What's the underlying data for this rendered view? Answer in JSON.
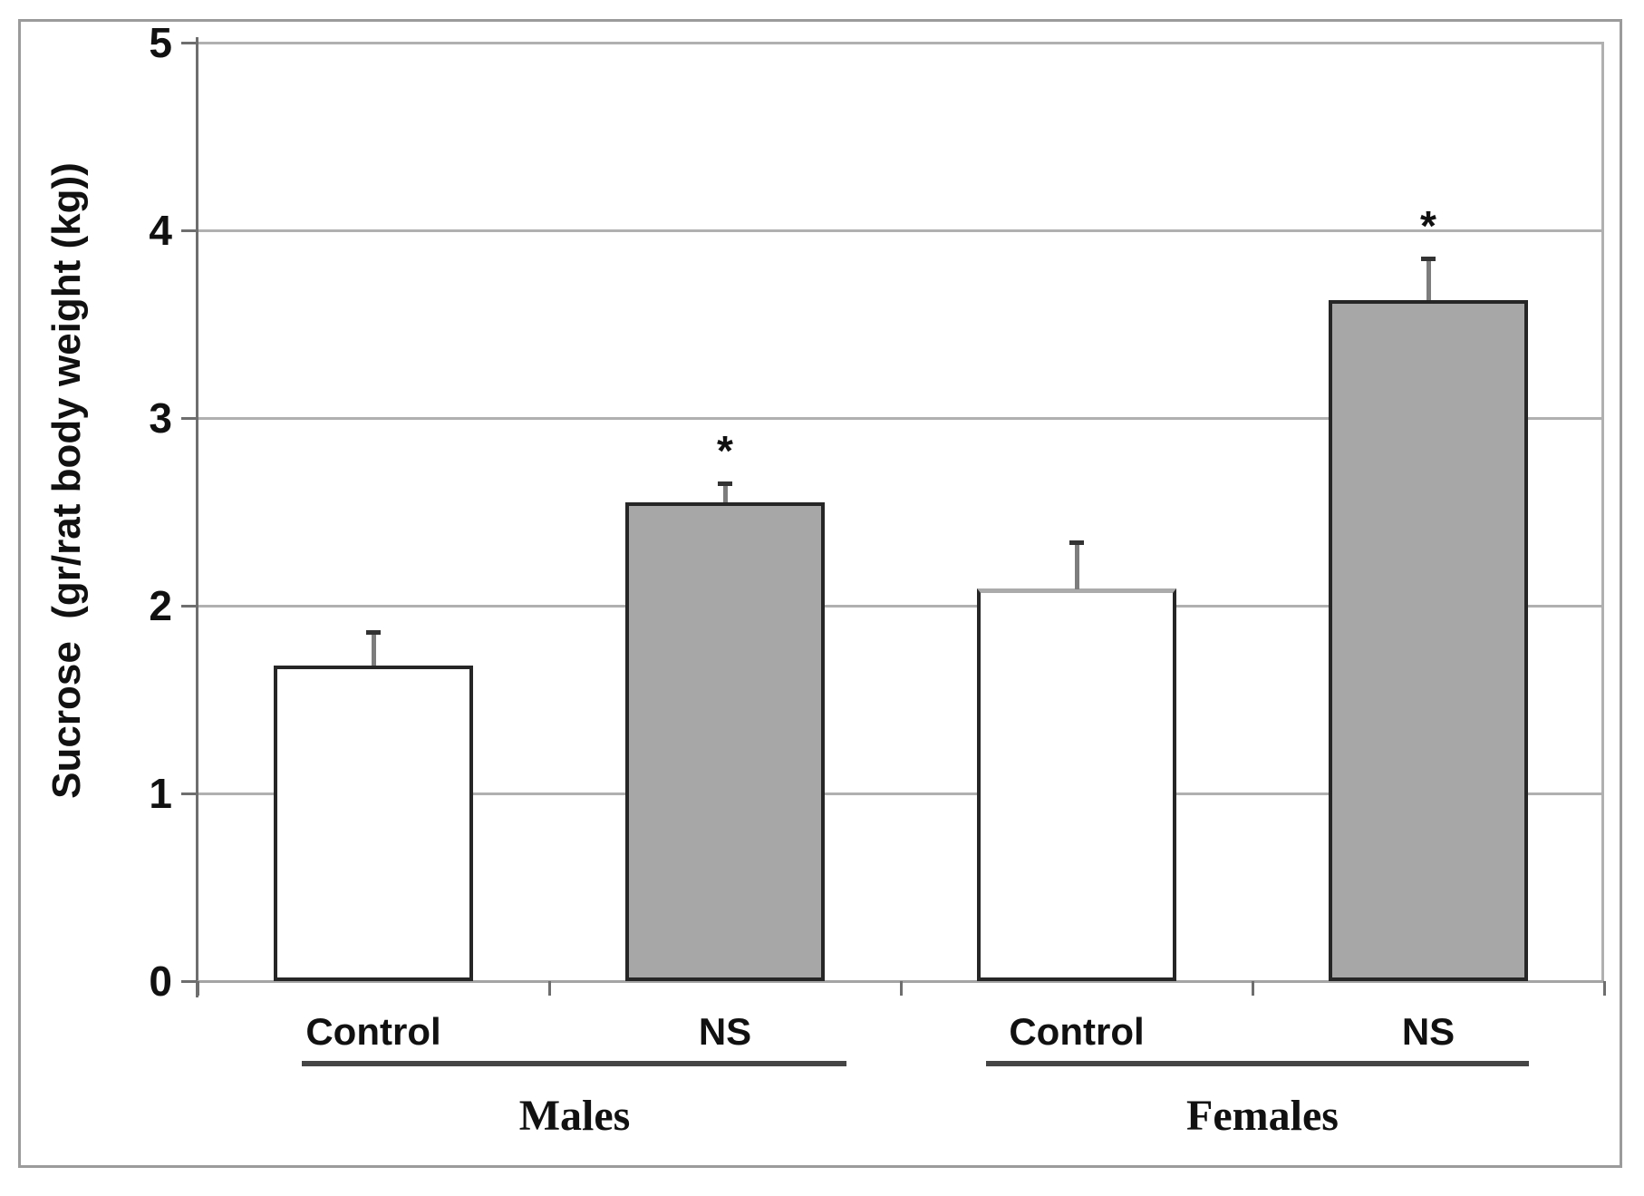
{
  "figure": {
    "y_axis": {
      "title_display": "Sucrose  (gr/rat body weight (kg))",
      "tick_labels": [
        "0",
        "1",
        "2",
        "3",
        "4",
        "5"
      ]
    },
    "x_axis": {
      "condition_labels": [
        "Control",
        "NS",
        "Control",
        "NS"
      ],
      "group_labels": [
        "Males",
        "Females"
      ]
    },
    "colors": {
      "bar_gray_fill": "#a7a7a7",
      "bar_white_fill": "#ffffff",
      "bar_outline": "#262626",
      "gridline": "#b0b0b0",
      "axis": "#6e6e6e",
      "frame": "#9b9b9b",
      "text": "#111111"
    }
  },
  "chart_data": {
    "type": "bar",
    "title": "",
    "xlabel": "",
    "ylabel": "Sucrose (gr/rat body weight (kg))",
    "ylim": [
      0,
      5
    ],
    "yticks": [
      0,
      1,
      2,
      3,
      4,
      5
    ],
    "grid": true,
    "legend_position": "none",
    "significance_marker": "*",
    "categories": [
      "Males Control",
      "Males NS",
      "Females Control",
      "Females NS"
    ],
    "groups": [
      {
        "label": "Males",
        "bars": [
          {
            "condition": "Control",
            "value": 1.68,
            "sem_plus": 0.18,
            "significant": false,
            "fill": "#ffffff",
            "top_edge": "dark"
          },
          {
            "condition": "NS",
            "value": 2.55,
            "sem_plus": 0.1,
            "significant": true,
            "fill": "#a7a7a7",
            "top_edge": "dark"
          }
        ]
      },
      {
        "label": "Females",
        "bars": [
          {
            "condition": "Control",
            "value": 2.09,
            "sem_plus": 0.25,
            "significant": false,
            "fill": "#ffffff",
            "top_edge": "light"
          },
          {
            "condition": "NS",
            "value": 3.63,
            "sem_plus": 0.22,
            "significant": true,
            "fill": "#a7a7a7",
            "top_edge": "dark"
          }
        ]
      }
    ]
  }
}
